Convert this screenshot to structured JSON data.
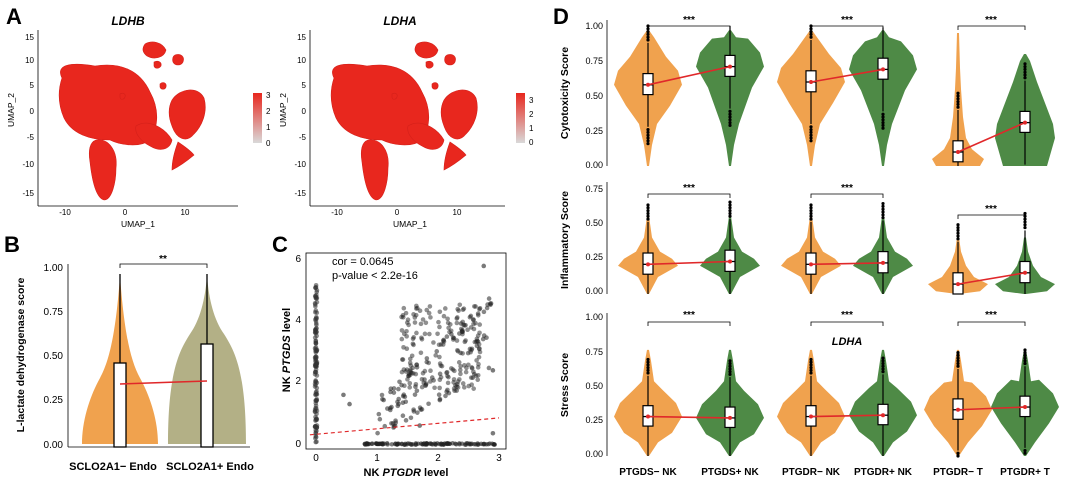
{
  "panel_labels": {
    "A": "A",
    "B": "B",
    "C": "C",
    "D": "D"
  },
  "chart_data": [
    {
      "type": "scatter",
      "panel": "A",
      "title": "UMAP feature plots",
      "plots": [
        {
          "gene": "LDHB",
          "legend_max": 3
        },
        {
          "gene": "LDHA",
          "legend_max": 3
        }
      ],
      "xlabel": "UMAP_1",
      "ylabel": "UMAP_2",
      "x_ticks": [
        "-10",
        "0",
        "10"
      ],
      "y_ticks": [
        "15",
        "10",
        "5",
        "0",
        "-5",
        "-10",
        "-15"
      ],
      "legend_ticks": [
        "3",
        "2",
        "1",
        "0"
      ],
      "colors": {
        "high": "#e8271e",
        "low": "#d9d9d9"
      }
    },
    {
      "type": "violin",
      "panel": "B",
      "ylabel": "L-lactate dehydrogenase score",
      "ylim": [
        0,
        1
      ],
      "y_ticks": [
        "1.00",
        "0.75",
        "0.50",
        "0.25",
        "0.00"
      ],
      "categories": [
        "SCLO2A1− Endo",
        "SCLO2A1+ Endo"
      ],
      "medians": [
        0.35,
        0.36
      ],
      "q1": [
        0.0,
        0.0
      ],
      "q3": [
        0.45,
        0.56
      ],
      "significance": "**",
      "colors": [
        "#f0a24e",
        "#b3b086"
      ]
    },
    {
      "type": "scatter",
      "panel": "C",
      "xlabel_prefix": "NK ",
      "xlabel_gene": "PTGDR",
      "xlabel_suffix": " level",
      "ylabel_prefix": "NK ",
      "ylabel_gene": "PTGDS",
      "ylabel_suffix": " level",
      "x_ticks": [
        "0",
        "1",
        "2",
        "3"
      ],
      "y_ticks": [
        "6",
        "4",
        "2",
        "0"
      ],
      "xlim": [
        -0.15,
        3.1
      ],
      "ylim": [
        -0.15,
        6.1
      ],
      "cor_text": "cor = 0.0645",
      "pvalue_text": "p-value < 2.2e-16",
      "trend": {
        "x0": -0.1,
        "y0": 0.3,
        "x1": 3.0,
        "y1": 0.85
      }
    },
    {
      "type": "violin",
      "panel": "D",
      "rows": [
        {
          "ylabel": "Cytotoxicity Score",
          "y_ticks": [
            "1.00",
            "0.75",
            "0.50",
            "0.25",
            "0.00"
          ],
          "ylim": [
            0,
            1
          ]
        },
        {
          "ylabel": "Inflammatory Score",
          "y_ticks": [
            "0.75",
            "0.50",
            "0.25",
            "0.00"
          ],
          "ylim": [
            0,
            0.75
          ]
        },
        {
          "ylabel": "Stress Score",
          "y_ticks": [
            "1.00",
            "0.75",
            "0.50",
            "0.25",
            "0.00"
          ],
          "ylim": [
            0,
            1
          ]
        }
      ],
      "groups": [
        {
          "categories": [
            "PTGDS− NK",
            "PTGDS+ NK"
          ]
        },
        {
          "categories": [
            "PTGDR− NK",
            "PTGDR+ NK"
          ]
        },
        {
          "categories": [
            "PTGDR− T",
            "PTGDR+ T"
          ]
        }
      ],
      "medians": [
        [
          [
            0.58,
            0.71
          ],
          [
            0.6,
            0.69
          ],
          [
            0.1,
            0.31
          ]
        ],
        [
          [
            0.21,
            0.23
          ],
          [
            0.21,
            0.22
          ],
          [
            0.07,
            0.15
          ]
        ],
        [
          [
            0.29,
            0.28
          ],
          [
            0.29,
            0.3
          ],
          [
            0.34,
            0.36
          ]
        ]
      ],
      "significance": "***",
      "overlay_label": "LDHA",
      "colors": {
        "negative": "#f0a24e",
        "positive": "#4e8a46",
        "trend": "#e0282a"
      }
    }
  ]
}
